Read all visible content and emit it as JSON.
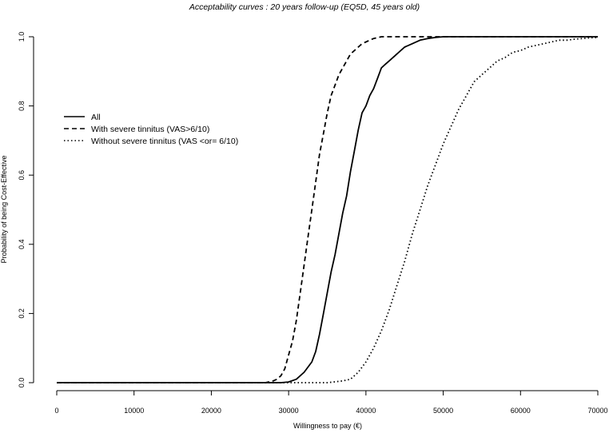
{
  "chart_data": {
    "type": "line",
    "title": "Acceptability curves : 20 years follow-up (EQ5D, 45 years old)",
    "xlabel": "Willingness to pay (€)",
    "ylabel": "Probability of being Cost-Effective",
    "xlim": [
      0,
      70000
    ],
    "ylim": [
      0,
      1
    ],
    "xticks": [
      0,
      10000,
      20000,
      30000,
      40000,
      50000,
      60000,
      70000
    ],
    "xtick_labels": [
      "0",
      "10000",
      "20000",
      "30000",
      "40000",
      "50000",
      "60000",
      "70000"
    ],
    "yticks": [
      0,
      0.2,
      0.4,
      0.6,
      0.8,
      1.0
    ],
    "ytick_labels": [
      "0.0",
      "0.2",
      "0.4",
      "0.6",
      "0.8",
      "1.0"
    ],
    "grid": false,
    "legend_position": "left",
    "series": [
      {
        "name": "All",
        "line_style": "solid",
        "color": "#000000",
        "x": [
          0,
          28000,
          29000,
          30000,
          31000,
          32000,
          33000,
          33500,
          34000,
          34500,
          35000,
          35500,
          36000,
          36500,
          37000,
          37500,
          38000,
          38500,
          39000,
          39500,
          40000,
          40500,
          41000,
          41500,
          42000,
          42500,
          43000,
          44000,
          45000,
          46000,
          47000,
          48000,
          49000,
          50000,
          52000,
          55000,
          60000,
          65000,
          70000
        ],
        "values": [
          0,
          0,
          0,
          0.002,
          0.01,
          0.03,
          0.06,
          0.09,
          0.14,
          0.2,
          0.26,
          0.32,
          0.37,
          0.43,
          0.49,
          0.54,
          0.61,
          0.67,
          0.73,
          0.78,
          0.8,
          0.83,
          0.85,
          0.88,
          0.91,
          0.92,
          0.93,
          0.95,
          0.97,
          0.98,
          0.99,
          0.995,
          0.998,
          1.0,
          1.0,
          1.0,
          1.0,
          1.0,
          1.0
        ]
      },
      {
        "name": "With severe tinnitus (VAS>6/10)",
        "line_style": "dashed",
        "color": "#000000",
        "x": [
          0,
          27000,
          28000,
          28500,
          29000,
          29500,
          30000,
          30500,
          31000,
          31500,
          32000,
          32500,
          33000,
          33500,
          34000,
          34500,
          35000,
          35500,
          36000,
          36500,
          37000,
          37500,
          38000,
          38500,
          39000,
          39500,
          40000,
          40500,
          41000,
          42000,
          43000,
          45000,
          50000,
          60000,
          70000
        ],
        "values": [
          0,
          0,
          0.005,
          0.01,
          0.02,
          0.04,
          0.08,
          0.12,
          0.18,
          0.26,
          0.34,
          0.42,
          0.5,
          0.58,
          0.66,
          0.72,
          0.78,
          0.83,
          0.86,
          0.89,
          0.91,
          0.93,
          0.95,
          0.96,
          0.97,
          0.98,
          0.985,
          0.99,
          0.995,
          1.0,
          1.0,
          1.0,
          1.0,
          1.0,
          1.0
        ]
      },
      {
        "name": "Without severe tinnitus (VAS <or= 6/10)",
        "line_style": "dotted",
        "color": "#000000",
        "x": [
          0,
          35000,
          37000,
          38000,
          39000,
          40000,
          41000,
          42000,
          43000,
          44000,
          45000,
          46000,
          47000,
          48000,
          49000,
          50000,
          51000,
          52000,
          53000,
          54000,
          55000,
          56000,
          57000,
          58000,
          59000,
          60000,
          61000,
          62000,
          63000,
          64000,
          65000,
          66000,
          67000,
          68000,
          69000,
          70000
        ],
        "values": [
          0,
          0,
          0.005,
          0.01,
          0.03,
          0.06,
          0.1,
          0.15,
          0.21,
          0.28,
          0.35,
          0.43,
          0.5,
          0.57,
          0.63,
          0.69,
          0.74,
          0.79,
          0.83,
          0.87,
          0.89,
          0.91,
          0.93,
          0.94,
          0.955,
          0.96,
          0.97,
          0.975,
          0.98,
          0.985,
          0.99,
          0.99,
          0.993,
          0.995,
          0.997,
          0.998
        ]
      }
    ]
  }
}
